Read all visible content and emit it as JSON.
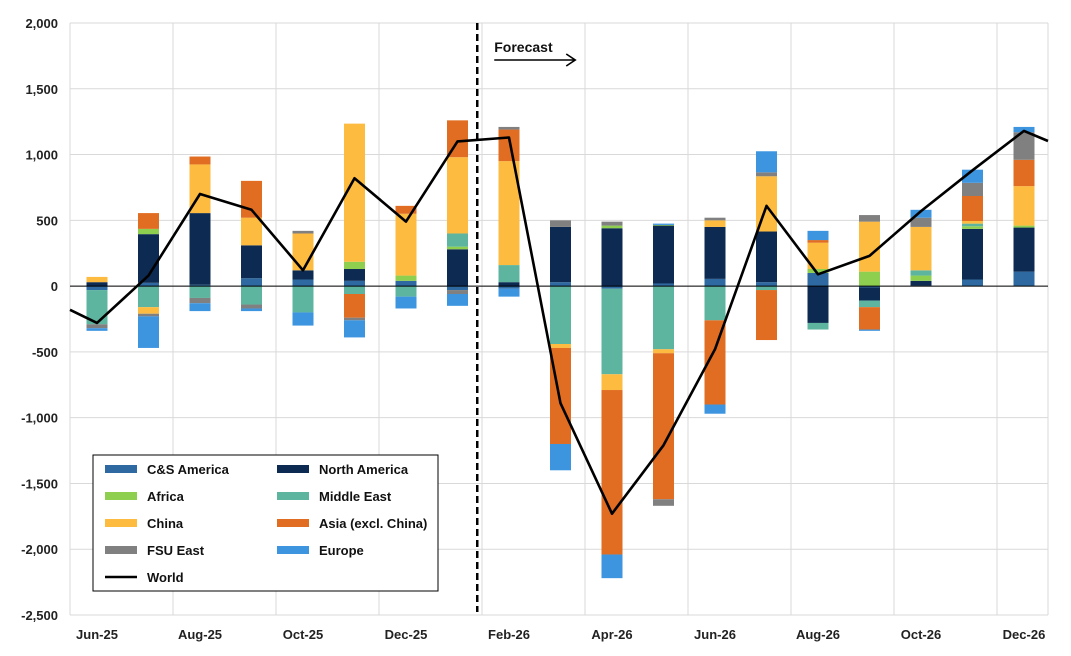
{
  "chart_data": {
    "type": "bar",
    "stacked": true,
    "title": "",
    "xlabel": "",
    "ylabel": "",
    "ylim": [
      -2500,
      2000
    ],
    "y_ticks": [
      2000,
      1500,
      1000,
      500,
      0,
      -500,
      -1000,
      -1500,
      -2000,
      -2500
    ],
    "y_tick_labels": [
      "2,000",
      "1,500",
      "1,000",
      "500",
      "0",
      "-500",
      "-1,000",
      "-1,500",
      "-2,000",
      "-2,500"
    ],
    "grid": true,
    "legend_position": "bottom-left",
    "categories": [
      "Jun-25",
      "Jul-25",
      "Aug-25",
      "Sep-25",
      "Oct-25",
      "Nov-25",
      "Dec-25",
      "Jan-26",
      "Feb-26",
      "Mar-26",
      "Apr-26",
      "May-26",
      "Jun-26",
      "Jul-26",
      "Aug-26",
      "Sep-26",
      "Oct-26",
      "Nov-26",
      "Dec-26"
    ],
    "x_tick_labels": [
      "Jun-25",
      "Aug-25",
      "Oct-25",
      "Dec-25",
      "Feb-26",
      "Apr-26",
      "Jun-26",
      "Aug-26",
      "Oct-26",
      "Dec-26"
    ],
    "forecast": {
      "label": "Forecast",
      "starts_after": "Jan-26"
    },
    "series": [
      {
        "name": "C&S America",
        "color": "#2e6aa1",
        "values": [
          -30,
          25,
          10,
          60,
          50,
          40,
          40,
          -30,
          -20,
          30,
          -20,
          20,
          55,
          30,
          100,
          -10,
          5,
          50,
          110
        ]
      },
      {
        "name": "North America",
        "color": "#0d2b52",
        "values": [
          30,
          370,
          545,
          250,
          70,
          90,
          0,
          280,
          30,
          420,
          440,
          440,
          395,
          385,
          -280,
          -100,
          35,
          385,
          335
        ]
      },
      {
        "name": "Africa",
        "color": "#8fcf4f",
        "values": [
          0,
          40,
          0,
          0,
          0,
          55,
          40,
          20,
          0,
          0,
          20,
          5,
          0,
          0,
          30,
          110,
          40,
          20,
          15
        ]
      },
      {
        "name": "Middle East",
        "color": "#5db5a0",
        "values": [
          -260,
          -160,
          -90,
          -140,
          -200,
          -60,
          -80,
          100,
          130,
          -440,
          -650,
          -480,
          -260,
          -30,
          -50,
          -50,
          40,
          20,
          0
        ]
      },
      {
        "name": "China",
        "color": "#fdbb40",
        "values": [
          40,
          -50,
          370,
          210,
          280,
          1050,
          470,
          580,
          790,
          -30,
          -120,
          -30,
          50,
          420,
          200,
          380,
          330,
          20,
          300
        ]
      },
      {
        "name": "Asia (excl. China)",
        "color": "#e06d21",
        "values": [
          0,
          120,
          60,
          280,
          0,
          -180,
          60,
          280,
          240,
          -730,
          -1250,
          -1110,
          -640,
          -380,
          20,
          -170,
          0,
          190,
          200
        ]
      },
      {
        "name": "FSU East",
        "color": "#808080",
        "values": [
          -30,
          -20,
          -40,
          -30,
          20,
          -20,
          0,
          -30,
          20,
          50,
          30,
          -50,
          20,
          30,
          0,
          50,
          70,
          100,
          210
        ]
      },
      {
        "name": "Europe",
        "color": "#3d95e0",
        "values": [
          -20,
          -240,
          -60,
          -20,
          -100,
          -130,
          -90,
          -90,
          -60,
          -200,
          -180,
          10,
          -70,
          160,
          70,
          -10,
          60,
          100,
          40
        ]
      }
    ],
    "line_series": {
      "name": "World",
      "color": "#000000",
      "values": [
        -280,
        80,
        700,
        580,
        120,
        820,
        490,
        1100,
        1130,
        -890,
        -1730,
        -1210,
        -480,
        610,
        90,
        230,
        570,
        880,
        1180
      ]
    }
  },
  "legend": {
    "items": [
      {
        "label": "C&S America",
        "color": "#2e6aa1"
      },
      {
        "label": "North America",
        "color": "#0d2b52"
      },
      {
        "label": "Africa",
        "color": "#8fcf4f"
      },
      {
        "label": "Middle East",
        "color": "#5db5a0"
      },
      {
        "label": "China",
        "color": "#fdbb40"
      },
      {
        "label": "Asia (excl. China)",
        "color": "#e06d21"
      },
      {
        "label": "FSU East",
        "color": "#808080"
      },
      {
        "label": "Europe",
        "color": "#3d95e0"
      }
    ],
    "line_label": "World"
  }
}
